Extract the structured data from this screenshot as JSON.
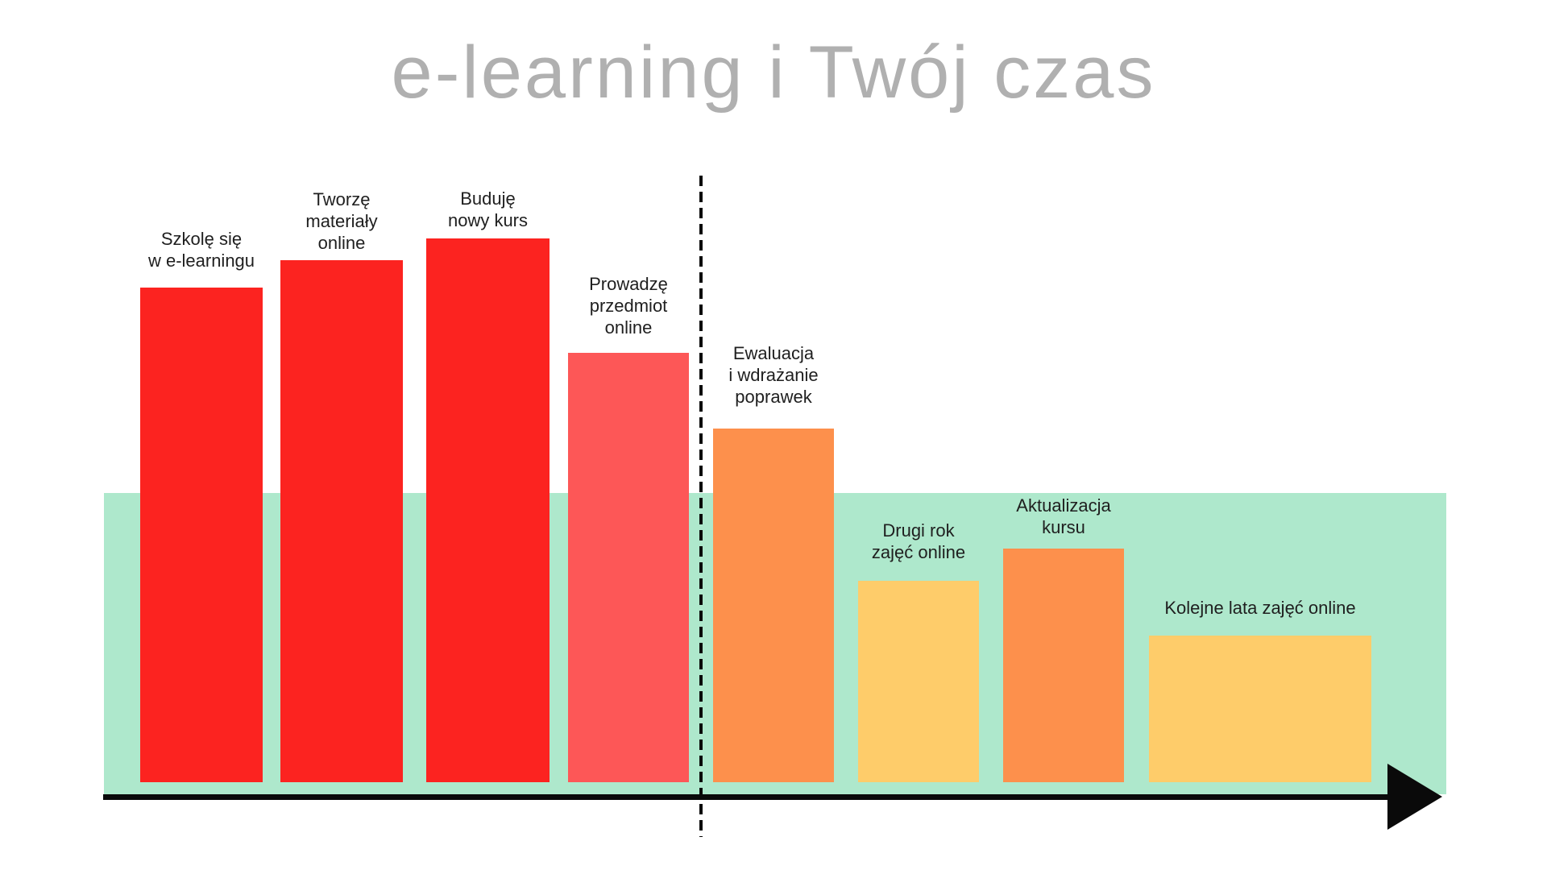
{
  "title": "e-learning i Twój czas",
  "colors": {
    "red": "#fc2320",
    "coral": "#fd5757",
    "orange": "#fd904c",
    "yellow": "#fecc6a",
    "band": "#aee8cc",
    "axis": "#0a0a0a",
    "title_text": "#b0b0b0",
    "label_text": "#1f1f1f"
  },
  "chart_data": {
    "type": "bar",
    "title": "e-learning i Twój czas",
    "categories": [
      "Szkolę się w e-learningu",
      "Tworzę materiały online",
      "Buduję nowy kurs",
      "Prowadzę przedmiot online",
      "Ewaluacja i wdrażanie poprawek",
      "Drugi rok zajęć online",
      "Aktualizacja kursu",
      "Kolejne lata zajęć online"
    ],
    "values": [
      91,
      96,
      100,
      79,
      65,
      37,
      43,
      27
    ],
    "value_note": "relative time effort estimated from bar pixel heights; no numeric axis shown",
    "xlabel": "",
    "ylabel": "",
    "ylim": [
      0,
      100
    ],
    "grid": false,
    "legend_position": "none",
    "annotations": {
      "vertical_dashed_divider_after_category_index": 3,
      "horizontal_band": "mint green band across lower portion of all bars",
      "x_axis": "black arrow pointing right (time)"
    }
  },
  "bars": [
    {
      "lines": [
        "Szkolę się",
        "w e-learningu"
      ],
      "color": "red",
      "value": 91
    },
    {
      "lines": [
        "Tworzę",
        "materiały",
        "online"
      ],
      "color": "red",
      "value": 96
    },
    {
      "lines": [
        "Buduję",
        "nowy kurs"
      ],
      "color": "red",
      "value": 100
    },
    {
      "lines": [
        "Prowadzę",
        "przedmiot",
        "online"
      ],
      "color": "coral",
      "value": 79
    },
    {
      "lines": [
        "Ewaluacja",
        "i wdrażanie",
        "poprawek"
      ],
      "color": "orange",
      "value": 65
    },
    {
      "lines": [
        "Drugi rok",
        "zajęć online"
      ],
      "color": "yellow",
      "value": 37
    },
    {
      "lines": [
        "Aktualizacja",
        "kursu"
      ],
      "color": "orange",
      "value": 43
    },
    {
      "lines": [
        "Kolejne lata zajęć online"
      ],
      "color": "yellow",
      "value": 27
    }
  ]
}
